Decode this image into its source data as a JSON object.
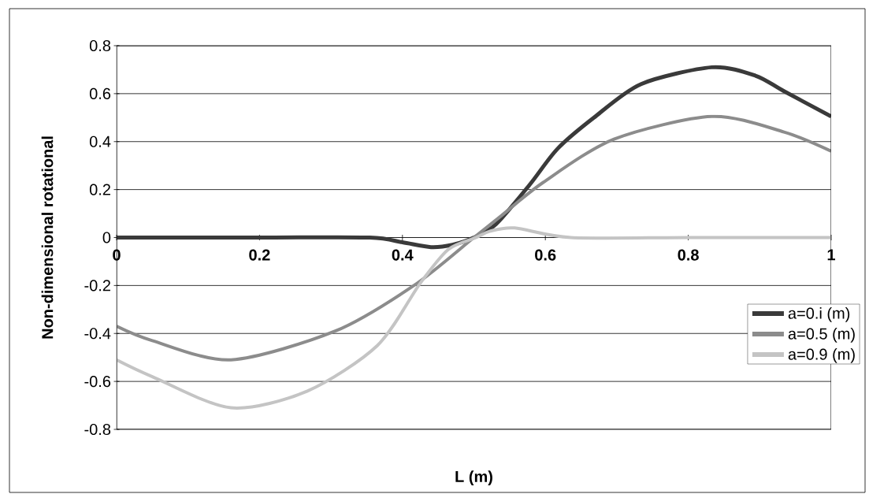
{
  "chart_data": {
    "type": "line",
    "xlabel": "L (m)",
    "ylabel": "Non-dimensional rotational",
    "xlim": [
      0,
      1
    ],
    "ylim": [
      -0.8,
      0.8
    ],
    "xticks": [
      0,
      0.2,
      0.4,
      0.6,
      0.8,
      1
    ],
    "yticks": [
      -0.8,
      -0.6,
      -0.4,
      -0.2,
      0,
      0.2,
      0.4,
      0.6,
      0.8
    ],
    "grid": "y",
    "legend": "right",
    "marker": "none",
    "line_style": "solid",
    "series": [
      {
        "name": "a=0.i (m)",
        "color": "#3a3a3a",
        "x": [
          0,
          0.2,
          0.354,
          0.4,
          0.44,
          0.47,
          0.5,
          0.531,
          0.578,
          0.617,
          0.668,
          0.734,
          0.833,
          0.894,
          0.934,
          1
        ],
        "values": [
          0,
          0,
          0,
          -0.02,
          -0.04,
          -0.03,
          0,
          0.056,
          0.22,
          0.37,
          0.5,
          0.64,
          0.71,
          0.675,
          0.61,
          0.505
        ]
      },
      {
        "name": "a=0.5 (m)",
        "color": "#8c8c8c",
        "x": [
          0,
          0.05,
          0.16,
          0.306,
          0.416,
          0.5,
          0.538,
          0.597,
          0.696,
          0.833,
          0.934,
          1
        ],
        "values": [
          -0.37,
          -0.43,
          -0.51,
          -0.39,
          -0.2,
          0,
          0.09,
          0.23,
          0.41,
          0.505,
          0.44,
          0.36
        ]
      },
      {
        "name": "a=0.9 (m)",
        "color": "#c4c4c4",
        "x": [
          0,
          0.05,
          0.16,
          0.267,
          0.365,
          0.425,
          0.464,
          0.503,
          0.522,
          0.557,
          0.636,
          0.8,
          1
        ],
        "values": [
          -0.51,
          -0.58,
          -0.71,
          -0.64,
          -0.45,
          -0.19,
          -0.05,
          0,
          0.026,
          0.04,
          0,
          0,
          0
        ]
      }
    ]
  }
}
